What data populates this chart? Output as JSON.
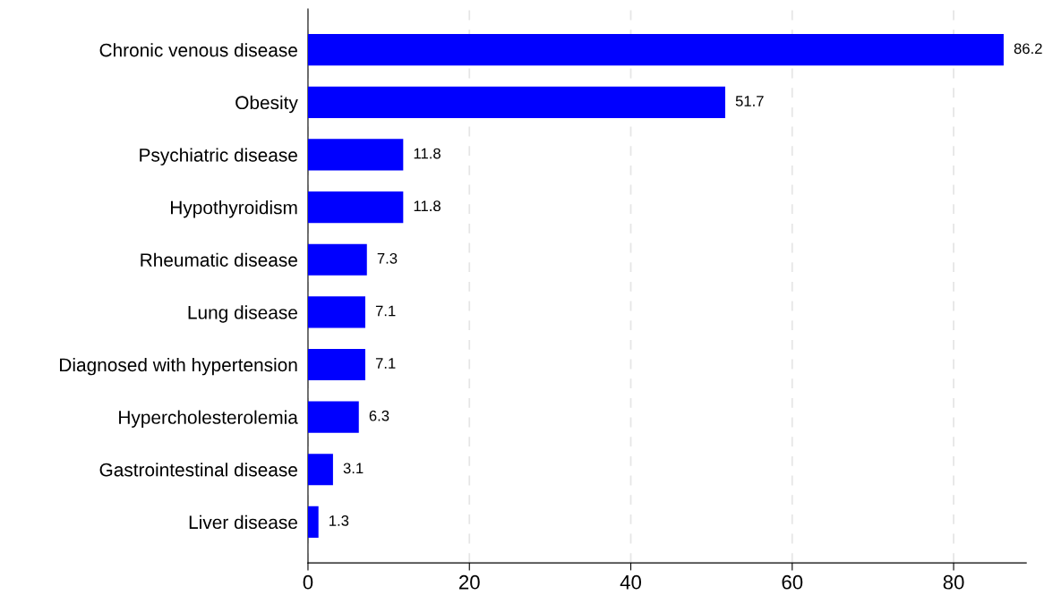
{
  "chart_data": {
    "type": "bar",
    "orientation": "horizontal",
    "categories": [
      "Chronic venous disease",
      "Obesity",
      "Psychiatric disease",
      "Hypothyroidism",
      "Rheumatic disease",
      "Lung disease",
      "Diagnosed with hypertension",
      "Hypercholesterolemia",
      "Gastrointestinal disease",
      "Liver disease"
    ],
    "values": [
      86.2,
      51.7,
      11.8,
      11.8,
      7.3,
      7.1,
      7.1,
      6.3,
      3.1,
      1.3
    ],
    "color": "#0000ff",
    "xlim": [
      0,
      89
    ],
    "xticks": [
      0,
      20,
      40,
      60,
      80
    ],
    "grid": "x",
    "data_labels": true
  }
}
